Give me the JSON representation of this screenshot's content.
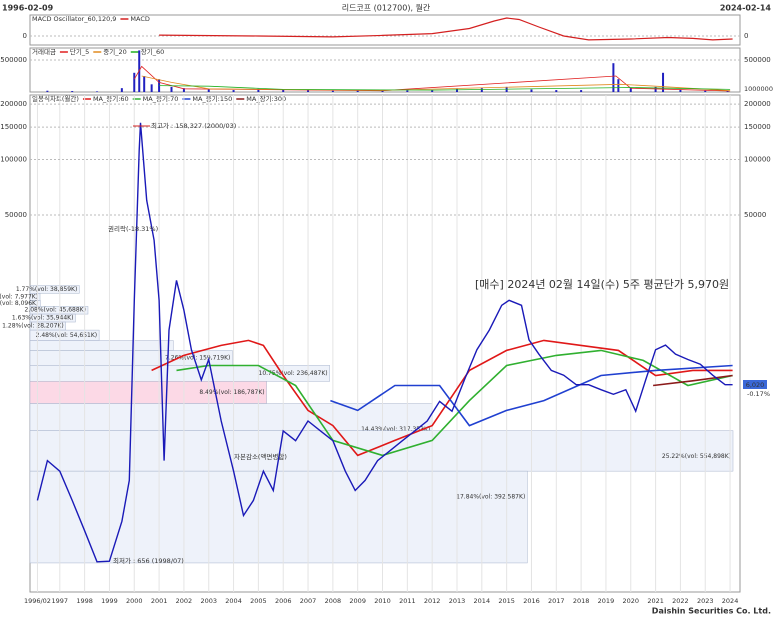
{
  "header": {
    "start_date": "1996-02-09",
    "title": "리드코프 (012700), 월간",
    "end_date": "2024-02-14"
  },
  "footer": "Daishin Securities Co. Ltd.",
  "chart_data": [
    {
      "type": "line",
      "title": "MACD Oscillator_60,120,9",
      "ylim": [
        -3000,
        7000
      ],
      "yticks": [
        0
      ],
      "series": [
        {
          "name": "MACD",
          "color": "#d42020",
          "x": [
            2001.0,
            2005.0,
            2008.0,
            2010.0,
            2012.0,
            2013.5,
            2014.5,
            2015.0,
            2015.5,
            2016.3,
            2017.3,
            2018.3,
            2020.0,
            2021.5,
            2022.5,
            2023.3,
            2024.1
          ],
          "values": [
            300,
            0,
            -300,
            200,
            800,
            2500,
            5000,
            6000,
            5500,
            3000,
            0,
            -1300,
            -1000,
            -500,
            -800,
            -1300,
            -1000
          ]
        }
      ]
    },
    {
      "type": "bar",
      "title": "거래대금",
      "ylim": [
        0,
        687500
      ],
      "yticks": [
        500000
      ],
      "unit_label": "1000000",
      "bar_color": "#2020c0",
      "x": [
        1996.5,
        1997.5,
        1998.5,
        1999.5,
        2000.0,
        2000.2,
        2000.4,
        2000.7,
        2001.0,
        2001.5,
        2002,
        2003,
        2004,
        2005,
        2006,
        2007,
        2008,
        2009,
        2010,
        2011,
        2012,
        2013,
        2014,
        2015,
        2016,
        2017,
        2018,
        2019.3,
        2019.5,
        2020,
        2021,
        2021.3,
        2022,
        2023,
        2023.9
      ],
      "values": [
        20000,
        15000,
        10000,
        60000,
        300000,
        650000,
        250000,
        120000,
        200000,
        80000,
        60000,
        40000,
        30000,
        50000,
        40000,
        30000,
        20000,
        25000,
        20000,
        25000,
        30000,
        50000,
        60000,
        80000,
        40000,
        30000,
        30000,
        450000,
        200000,
        60000,
        80000,
        300000,
        40000,
        20000,
        15000
      ],
      "series": [
        {
          "name": "단기_5",
          "color": "#e02020",
          "x": [
            2000,
            2000.3,
            2001,
            2002,
            2010,
            2019.4,
            2020,
            2024
          ],
          "values": [
            200000,
            400000,
            150000,
            50000,
            20000,
            250000,
            60000,
            15000
          ]
        },
        {
          "name": "중기_20",
          "color": "#e08a20",
          "x": [
            2000.3,
            2001.5,
            2003,
            2010,
            2019.6,
            2021,
            2024
          ],
          "values": [
            250000,
            150000,
            50000,
            25000,
            120000,
            90000,
            20000
          ]
        },
        {
          "name": "장기_60",
          "color": "#20b020",
          "x": [
            2001,
            2003,
            2006,
            2012,
            2020,
            2024
          ],
          "values": [
            100000,
            90000,
            40000,
            30000,
            70000,
            40000
          ]
        }
      ]
    },
    {
      "type": "line",
      "title": "일봉식차트(월간)",
      "log_scale": true,
      "ylim": [
        450,
        224000
      ],
      "yticks": [
        50000,
        100000,
        150000,
        200000
      ],
      "xlim": [
        1995.8,
        2024.4
      ],
      "xticks": [
        {
          "value": 1996.1,
          "label": "1996/02"
        },
        1997,
        1998,
        1999,
        2000,
        2001,
        2002,
        2003,
        2004,
        2005,
        2006,
        2007,
        2008,
        2009,
        2010,
        2011,
        2012,
        2013,
        2014,
        2015,
        2016,
        2017,
        2018,
        2019,
        2020,
        2021,
        2022,
        2023,
        2024
      ],
      "price": {
        "color": "#1a1ab8",
        "x": [
          1996.1,
          1996.5,
          1997.0,
          1997.5,
          1998.0,
          1998.5,
          1999.0,
          1999.5,
          1999.8,
          2000.0,
          2000.2,
          2000.25,
          2000.5,
          2000.8,
          2001.0,
          2001.2,
          2001.4,
          2001.7,
          2002.0,
          2002.3,
          2002.7,
          2003.0,
          2003.5,
          2004.0,
          2004.4,
          2004.8,
          2005.2,
          2005.6,
          2006.0,
          2006.5,
          2007.0,
          2007.5,
          2008.0,
          2008.5,
          2008.9,
          2009.3,
          2009.8,
          2010.3,
          2010.8,
          2011.3,
          2011.8,
          2012.3,
          2012.8,
          2013.3,
          2013.8,
          2014.3,
          2014.8,
          2015.1,
          2015.6,
          2015.9,
          2016.3,
          2016.8,
          2017.3,
          2017.8,
          2018.3,
          2018.8,
          2019.3,
          2019.8,
          2020.2,
          2020.6,
          2021.0,
          2021.4,
          2021.8,
          2022.3,
          2022.8,
          2023.3,
          2023.8,
          2024.1
        ],
        "values": [
          1413,
          2323,
          2037,
          1413,
          968,
          656,
          661,
          1088,
          1814,
          17220,
          112400,
          158327,
          60100,
          36460,
          17220,
          2323,
          11870,
          22080,
          15220,
          9290,
          6370,
          8220,
          3810,
          2037,
          1170,
          1413,
          2037,
          1600,
          3370,
          2980,
          3810,
          3370,
          2980,
          2037,
          1600,
          1814,
          2323,
          2630,
          2980,
          3370,
          3810,
          4870,
          4310,
          6370,
          9290,
          11870,
          16190,
          17220,
          16190,
          10520,
          8780,
          7170,
          6760,
          6000,
          6000,
          5640,
          5320,
          5640,
          4310,
          6370,
          9290,
          9840,
          8780,
          8220,
          7750,
          6760,
          6000,
          6000
        ]
      },
      "series": [
        {
          "name": "MA_중기:60",
          "color": "#e01818",
          "x": [
            2000.7,
            2002,
            2003.5,
            2004.6,
            2005.2,
            2006.0,
            2007,
            2008,
            2009,
            2010.5,
            2012,
            2013.5,
            2015,
            2016.5,
            2018,
            2019.5,
            2021,
            2022.5,
            2024.1
          ],
          "values": [
            7170,
            8650,
            9800,
            10440,
            9800,
            6730,
            4350,
            3600,
            2480,
            2990,
            3600,
            7170,
            9210,
            10440,
            9800,
            9210,
            6730,
            7170,
            7170
          ]
        },
        {
          "name": "MA_중기:70",
          "color": "#30b030",
          "x": [
            2001.7,
            2003,
            2005,
            2006.5,
            2008,
            2010,
            2012,
            2013.5,
            2015,
            2017,
            2018.8,
            2020.5,
            2022.3,
            2024.1
          ],
          "values": [
            7170,
            7630,
            7630,
            5940,
            2990,
            2480,
            2990,
            4920,
            7630,
            8650,
            9210,
            8130,
            5940,
            6730
          ]
        },
        {
          "name": "MA_중기:150",
          "color": "#2040d0",
          "x": [
            2007.9,
            2009,
            2010.5,
            2012.3,
            2013.5,
            2015,
            2016.5,
            2018.8,
            2021,
            2024.1
          ],
          "values": [
            4920,
            4350,
            5940,
            5940,
            3600,
            4350,
            4920,
            6730,
            7170,
            7630
          ]
        },
        {
          "name": "MA_장기:300",
          "color": "#8b1a1a",
          "x": [
            2020.9,
            2022.5,
            2024.1
          ],
          "values": [
            5940,
            6300,
            6730
          ]
        }
      ],
      "volume_profile": [
        {
          "label": "1.77%(vol: 38,859K)",
          "value": 1.77,
          "low": 18800,
          "high": 20700,
          "color": "#eef2fa"
        },
        {
          "label": "0.36%(vol: 7,977K)",
          "value": 0.36,
          "low": 17220,
          "high": 18800,
          "color": "#eef2fa"
        },
        {
          "label": "0.37%(vol: 8,096K)",
          "value": 0.37,
          "low": 15960,
          "high": 17220,
          "color": "#eef2fa"
        },
        {
          "label": "2.08%(vol: 45,688K)",
          "value": 2.08,
          "low": 14500,
          "high": 15960,
          "color": "#eef2fa"
        },
        {
          "label": "1.63%(vol: 35,944K)",
          "value": 1.63,
          "low": 13130,
          "high": 14500,
          "color": "#eef2fa"
        },
        {
          "label": "1.28%(vol: 28,207K)",
          "value": 1.28,
          "low": 11870,
          "high": 13130,
          "color": "#eef2fa"
        },
        {
          "label": "2.48%(vol: 54,651K)",
          "value": 2.48,
          "low": 10420,
          "high": 11870,
          "color": "#eef2fa"
        },
        {
          "value": 5.14,
          "low": 9200,
          "high": 10420,
          "color": "#eef2fa"
        },
        {
          "label": "7.26%(vol: 159,719K)",
          "value": 7.26,
          "low": 7640,
          "high": 9200,
          "color": "#eef2fa"
        },
        {
          "label": "10.75%(vol: 236,487K)",
          "value": 10.75,
          "low": 6260,
          "high": 7640,
          "color": "#eef2fa"
        },
        {
          "label": "8.49%(vol: 186,787K)",
          "value": 8.49,
          "low": 4740,
          "high": 6260,
          "color": "#fcd9e6"
        },
        {
          "label": "14.43%(vol: 317,353K)",
          "value": 14.43,
          "low": 3380,
          "high": 4740,
          "color": "#eef2fa"
        },
        {
          "label": "25.22%(vol: 554,898K)",
          "value": 25.22,
          "low": 2037,
          "high": 3380,
          "color": "#eef2fa"
        },
        {
          "label": "17.84%(vol: 392,587K)",
          "value": 17.84,
          "low": 647,
          "high": 2037,
          "color": "#eef2fa"
        }
      ],
      "annotations": [
        {
          "text": "최고가 : 158,327 (2000/03)",
          "color": "#d42020"
        },
        {
          "text": "최저가 : 656 (1998/07)",
          "color": "#2020c0"
        },
        {
          "text": "[매수] 2024년 02월 14일(수) 5주 평균단가 5,970원",
          "color": "#e02020"
        },
        {
          "text": "권리락(-18.31%)",
          "color": "#333333"
        },
        {
          "text": "자본감소(액면병합)",
          "color": "#333333"
        }
      ],
      "last_label": "6,020",
      "change_label": "-0.17%"
    }
  ]
}
